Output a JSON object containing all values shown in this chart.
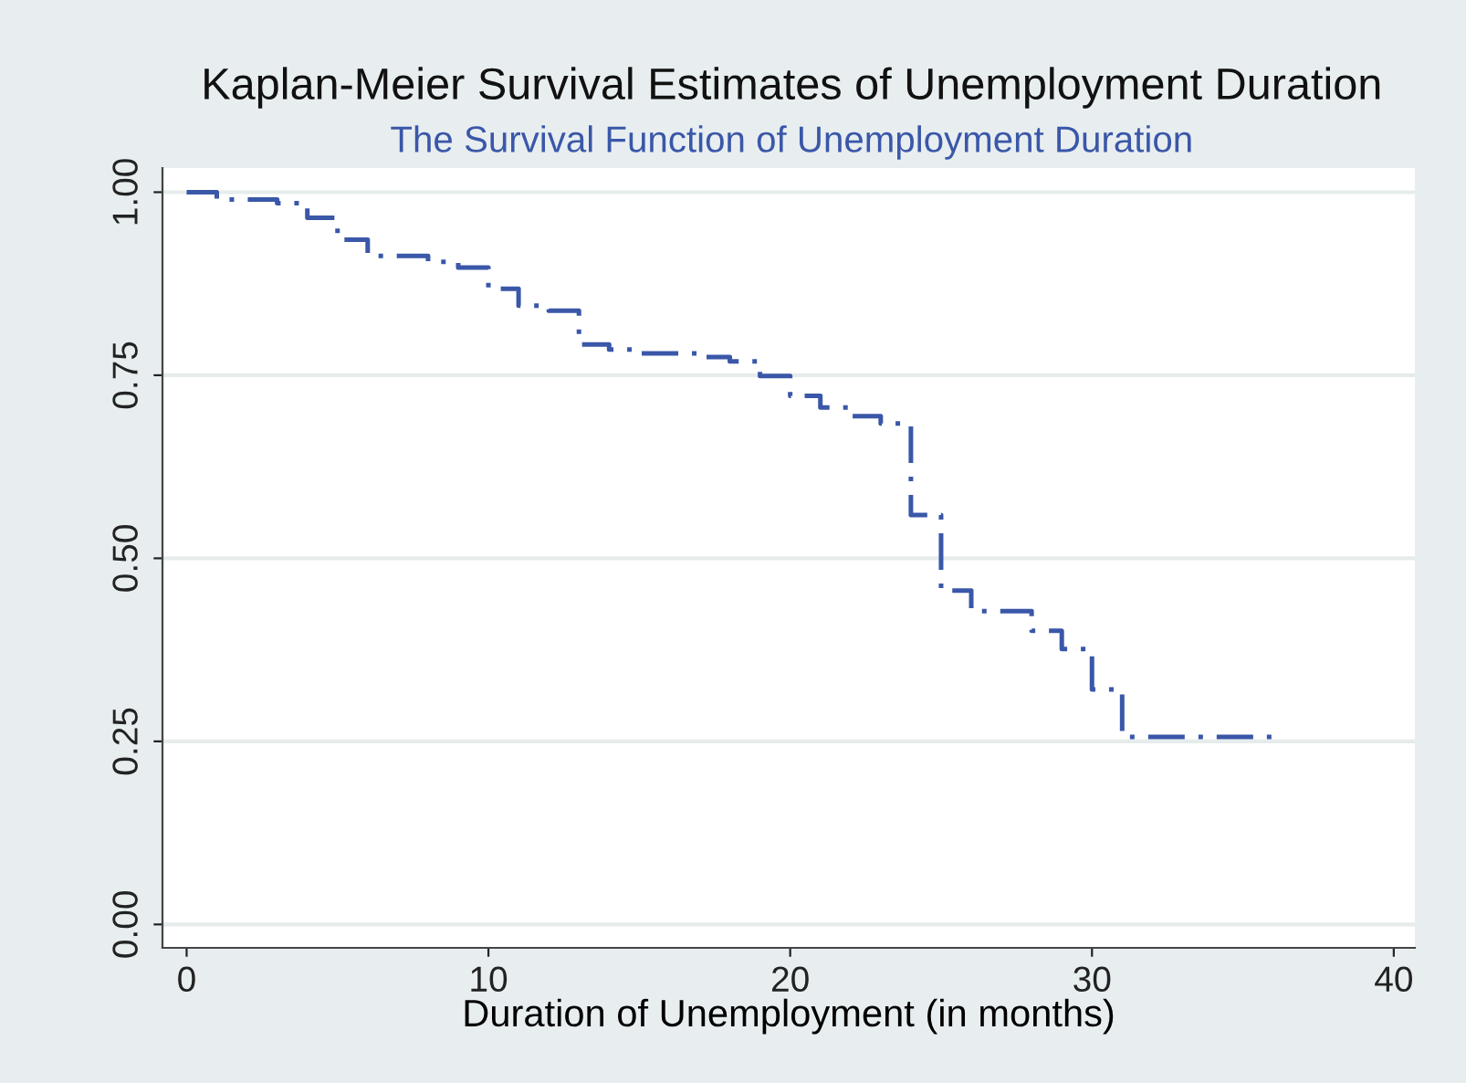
{
  "chart_data": {
    "type": "step",
    "title": "Kaplan-Meier Survival Estimates of Unemployment Duration",
    "subtitle": "The Survival Function of Unemployment Duration",
    "xlabel": "Duration of Unemployment (in months)",
    "series": [
      {
        "color": "#3a57a8",
        "x": [
          0,
          1,
          3,
          4,
          5,
          6,
          8,
          9,
          10,
          11,
          12,
          13,
          14,
          15,
          17,
          18,
          19,
          20,
          21,
          22,
          23,
          24,
          25,
          26,
          28,
          29,
          30,
          31,
          36
        ],
        "values": [
          1.0,
          0.99,
          0.985,
          0.965,
          0.935,
          0.913,
          0.905,
          0.897,
          0.868,
          0.845,
          0.838,
          0.792,
          0.785,
          0.78,
          0.775,
          0.769,
          0.749,
          0.722,
          0.706,
          0.694,
          0.684,
          0.559,
          0.456,
          0.428,
          0.401,
          0.376,
          0.321,
          0.256,
          0.256
        ]
      }
    ],
    "xlim": [
      -0.8,
      40.7
    ],
    "ylim": [
      -0.032,
      1.033
    ],
    "xticks": [
      0,
      10,
      20,
      30,
      40
    ],
    "yticks": [
      {
        "value": 0,
        "label": "0.00"
      },
      {
        "value": 0.25,
        "label": "0.25"
      },
      {
        "value": 0.5,
        "label": "0.50"
      },
      {
        "value": 0.75,
        "label": "0.75"
      },
      {
        "value": 1,
        "label": "1.00"
      }
    ],
    "grid": "y",
    "line_style": "dashdot"
  }
}
